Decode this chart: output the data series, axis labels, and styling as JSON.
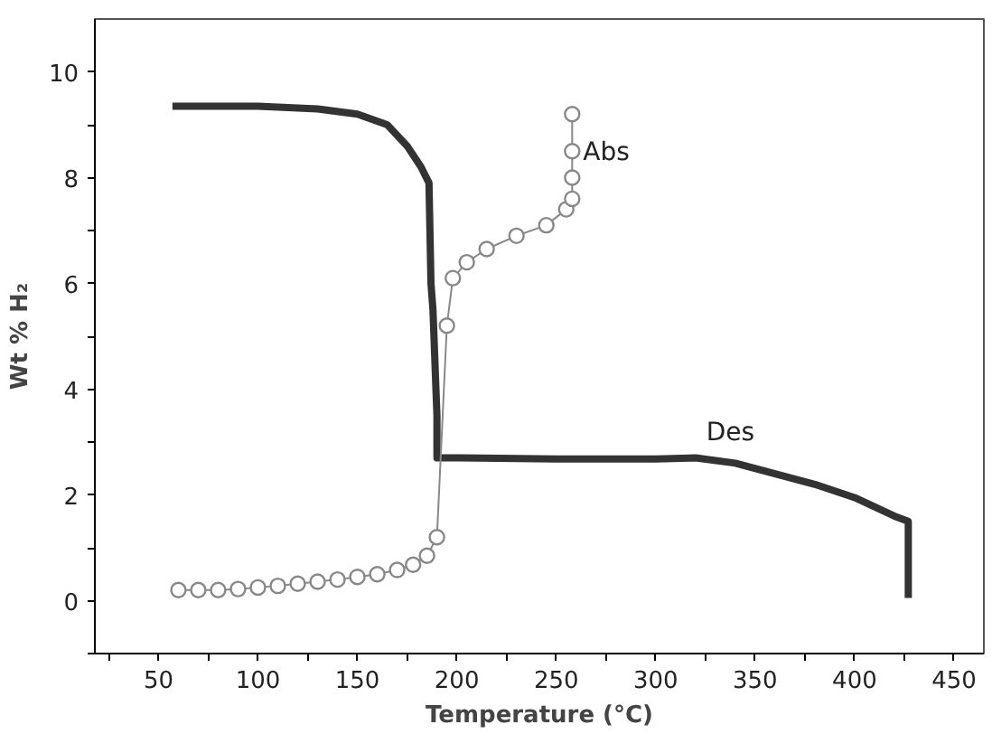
{
  "chart_data": {
    "type": "line",
    "xlabel": "Temperature (°C)",
    "ylabel": "Wt % H₂",
    "grid": false,
    "xlim": [
      18,
      465
    ],
    "ylim": [
      -1,
      11
    ],
    "xticks": [
      {
        "value": 25,
        "label": null
      },
      50,
      {
        "value": 75,
        "label": null
      },
      100,
      {
        "value": 125,
        "label": null
      },
      150,
      {
        "value": 175,
        "label": null
      },
      200,
      {
        "value": 225,
        "label": null
      },
      250,
      {
        "value": 275,
        "label": null
      },
      300,
      {
        "value": 325,
        "label": null
      },
      350,
      {
        "value": 375,
        "label": null
      },
      400,
      {
        "value": 425,
        "label": null
      },
      450
    ],
    "yticks": [
      {
        "value": -1,
        "label": null
      },
      0,
      {
        "value": 1,
        "label": null
      },
      2,
      {
        "value": 3,
        "label": null
      },
      4,
      {
        "value": 5,
        "label": null
      },
      6,
      {
        "value": 7,
        "label": null
      },
      8,
      {
        "value": 9,
        "label": null
      },
      10
    ],
    "series": [
      {
        "color": "#333333",
        "marker": "none",
        "line_style": "solid",
        "x": [
          57,
          100,
          130,
          150,
          165,
          175,
          182,
          186,
          187,
          188,
          189,
          190,
          190,
          200,
          250,
          300,
          320,
          340,
          360,
          380,
          400,
          420,
          427,
          427
        ],
        "values": [
          9.35,
          9.35,
          9.3,
          9.2,
          9.0,
          8.6,
          8.2,
          7.9,
          6.0,
          5.5,
          4.5,
          3.5,
          2.7,
          2.7,
          2.68,
          2.68,
          2.7,
          2.6,
          2.4,
          2.2,
          1.95,
          1.6,
          1.5,
          0.05
        ]
      },
      {
        "color": "#888888",
        "marker": "circle",
        "line_style": "solid",
        "x": [
          60,
          70,
          80,
          90,
          100,
          110,
          120,
          130,
          140,
          150,
          160,
          170,
          178,
          185,
          190,
          195,
          198,
          205,
          215,
          230,
          245,
          255,
          258,
          258,
          258,
          258
        ],
        "values": [
          0.2,
          0.2,
          0.2,
          0.22,
          0.25,
          0.28,
          0.32,
          0.36,
          0.4,
          0.45,
          0.5,
          0.58,
          0.68,
          0.85,
          1.2,
          5.2,
          6.1,
          6.4,
          6.65,
          6.9,
          7.1,
          7.4,
          7.6,
          8.0,
          8.5,
          9.2
        ]
      }
    ],
    "annotations": [
      {
        "text": "Abs",
        "x": 258,
        "y": 8.0
      },
      {
        "text": "Des",
        "x": 320,
        "y": 2.7
      }
    ]
  }
}
